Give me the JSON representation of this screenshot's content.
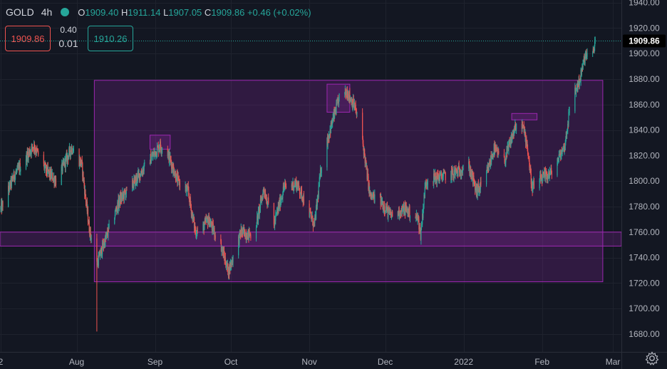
{
  "header": {
    "symbol": "GOLD",
    "timeframe": "4h",
    "open_label": "O",
    "open": "1909.40",
    "high_label": "H",
    "high": "1911.14",
    "low_label": "L",
    "low": "1907.05",
    "close_label": "C",
    "close": "1909.86",
    "change": "+0.46 (+0.02%)"
  },
  "trade": {
    "bid": "1909.86",
    "spread_top": "0.40",
    "spread_bottom": "0.01",
    "ask": "1910.26"
  },
  "colors": {
    "background": "#131722",
    "up": "#26a69a",
    "down": "#ef5350",
    "zone_fill": "rgba(156,39,176,0.22)",
    "zone_border": "#9c27b0",
    "price_label_bg": "#000000",
    "grid": "#1e222d",
    "axis_text": "#b2b5be"
  },
  "chart_data": {
    "type": "candlestick",
    "ylim": [
      1666,
      1942
    ],
    "y_ticks": [
      1680,
      1700,
      1720,
      1740,
      1760,
      1780,
      1800,
      1820,
      1840,
      1860,
      1880,
      1900,
      1920,
      1940
    ],
    "x_labels": [
      "2",
      "Aug",
      "Sep",
      "Oct",
      "Nov",
      "Dec",
      "2022",
      "Feb",
      "Mar"
    ],
    "x_label_dates": [
      "2021-07-02",
      "2021-08-01",
      "2021-09-01",
      "2021-10-01",
      "2021-11-01",
      "2021-12-01",
      "2022-01-01",
      "2022-02-01",
      "2022-03-01"
    ],
    "last_price": 1909.86,
    "last_price_label": "1909.86",
    "anchors": [
      [
        "2021-07-02",
        1778
      ],
      [
        "2021-07-07",
        1803
      ],
      [
        "2021-07-15",
        1828
      ],
      [
        "2021-07-20",
        1808
      ],
      [
        "2021-07-24",
        1800
      ],
      [
        "2021-07-30",
        1826
      ],
      [
        "2021-08-03",
        1813
      ],
      [
        "2021-08-06",
        1763
      ],
      [
        "2021-08-09",
        1735
      ],
      [
        "2021-08-12",
        1752
      ],
      [
        "2021-08-18",
        1785
      ],
      [
        "2021-08-23",
        1797
      ],
      [
        "2021-08-29",
        1814
      ],
      [
        "2021-09-03",
        1828
      ],
      [
        "2021-09-06",
        1822
      ],
      [
        "2021-09-10",
        1800
      ],
      [
        "2021-09-14",
        1792
      ],
      [
        "2021-09-17",
        1760
      ],
      [
        "2021-09-20",
        1764
      ],
      [
        "2021-09-22",
        1770
      ],
      [
        "2021-09-27",
        1750
      ],
      [
        "2021-09-30",
        1729
      ],
      [
        "2021-10-05",
        1760
      ],
      [
        "2021-10-10",
        1757
      ],
      [
        "2021-10-14",
        1794
      ],
      [
        "2021-10-18",
        1766
      ],
      [
        "2021-10-22",
        1795
      ],
      [
        "2021-10-27",
        1798
      ],
      [
        "2021-10-30",
        1785
      ],
      [
        "2021-11-03",
        1765
      ],
      [
        "2021-11-06",
        1816
      ],
      [
        "2021-11-10",
        1846
      ],
      [
        "2021-11-13",
        1866
      ],
      [
        "2021-11-16",
        1870
      ],
      [
        "2021-11-19",
        1858
      ],
      [
        "2021-11-22",
        1832
      ],
      [
        "2021-11-25",
        1788
      ],
      [
        "2021-11-29",
        1785
      ],
      [
        "2021-12-03",
        1773
      ],
      [
        "2021-12-09",
        1778
      ],
      [
        "2021-12-14",
        1770
      ],
      [
        "2021-12-15",
        1758
      ],
      [
        "2021-12-17",
        1800
      ],
      [
        "2021-12-22",
        1803
      ],
      [
        "2021-12-28",
        1806
      ],
      [
        "2022-01-03",
        1812
      ],
      [
        "2022-01-06",
        1792
      ],
      [
        "2022-01-09",
        1798
      ],
      [
        "2022-01-13",
        1825
      ],
      [
        "2022-01-17",
        1815
      ],
      [
        "2022-01-21",
        1840
      ],
      [
        "2022-01-24",
        1845
      ],
      [
        "2022-01-26",
        1830
      ],
      [
        "2022-01-28",
        1795
      ],
      [
        "2022-02-01",
        1802
      ],
      [
        "2022-02-05",
        1807
      ],
      [
        "2022-02-10",
        1828
      ],
      [
        "2022-02-12",
        1858
      ],
      [
        "2022-02-14",
        1870
      ],
      [
        "2022-02-16",
        1880
      ],
      [
        "2022-02-18",
        1898
      ],
      [
        "2022-02-21",
        1898
      ],
      [
        "2022-02-22",
        1909.86
      ]
    ],
    "wicks": [
      [
        "2021-08-09",
        1682
      ]
    ],
    "zones": [
      {
        "from": "2021-08-08",
        "to": "2022-02-25",
        "top": 1879,
        "bottom": 1721
      },
      {
        "from": "2021-07-01",
        "to": "2022-03-10",
        "top": 1760,
        "bottom": 1749
      },
      {
        "from": "2021-08-30",
        "to": "2021-09-07",
        "top": 1836,
        "bottom": 1825
      },
      {
        "from": "2021-11-08",
        "to": "2021-11-17",
        "top": 1876,
        "bottom": 1854
      },
      {
        "from": "2022-01-20",
        "to": "2022-01-30",
        "top": 1853,
        "bottom": 1848
      }
    ]
  }
}
